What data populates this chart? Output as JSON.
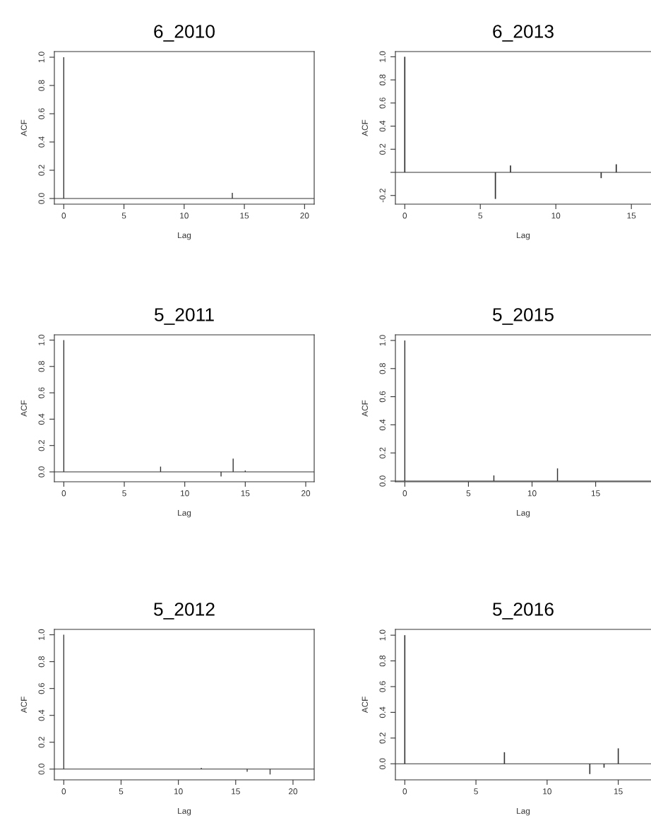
{
  "chart_data": [
    {
      "type": "bar",
      "title": "6_2010",
      "xlabel": "Lag",
      "ylabel": "ACF",
      "color": "#333333",
      "x": [
        0,
        14
      ],
      "values": [
        1.0,
        0.04
      ],
      "xlim": [
        -0.78,
        20.8
      ],
      "ylim": [
        -0.04,
        1.04
      ],
      "xticks": [
        0,
        5,
        10,
        15,
        20
      ],
      "yticks": [
        {
          "value": 0,
          "label": "0.0"
        },
        {
          "value": 0.2,
          "label": "0.2"
        },
        {
          "value": 0.4,
          "label": "0.4"
        },
        {
          "value": 0.6,
          "label": "0.6"
        },
        {
          "value": 0.8,
          "label": "0.8"
        },
        {
          "value": 1,
          "label": "1.0"
        }
      ],
      "ref_lines": [
        {
          "axis": "y",
          "value": 0
        }
      ]
    },
    {
      "type": "bar",
      "title": "6_2013",
      "xlabel": "Lag",
      "ylabel": "ACF",
      "color": "#333333",
      "x": [
        0,
        6,
        7,
        13,
        14
      ],
      "values": [
        1.0,
        -0.23,
        0.06,
        -0.05,
        0.07
      ],
      "xlim": [
        -0.62,
        16.3
      ],
      "ylim": [
        -0.275,
        1.045
      ],
      "xticks": [
        0,
        5,
        10,
        15
      ],
      "yticks": [
        {
          "value": -0.2,
          "label": "-0.2"
        },
        {
          "value": 0,
          "label": null
        },
        {
          "value": 0.2,
          "label": "0.2"
        },
        {
          "value": 0.4,
          "label": "0.4"
        },
        {
          "value": 0.6,
          "label": "0.6"
        },
        {
          "value": 0.8,
          "label": "0.8"
        },
        {
          "value": 1,
          "label": "1.0"
        }
      ],
      "ref_lines": [
        {
          "axis": "y",
          "value": 0
        }
      ]
    },
    {
      "type": "bar",
      "title": "5_2011",
      "xlabel": "Lag",
      "ylabel": "ACF",
      "color": "#333333",
      "x": [
        0,
        8,
        13,
        14,
        15
      ],
      "values": [
        1.0,
        0.04,
        -0.035,
        0.1,
        0.01
      ],
      "xlim": [
        -0.78,
        20.7
      ],
      "ylim": [
        -0.075,
        1.04
      ],
      "xticks": [
        0,
        5,
        10,
        15,
        20
      ],
      "yticks": [
        {
          "value": 0,
          "label": "0.0"
        },
        {
          "value": 0.2,
          "label": "0.2"
        },
        {
          "value": 0.4,
          "label": "0.4"
        },
        {
          "value": 0.6,
          "label": "0.6"
        },
        {
          "value": 0.8,
          "label": "0.8"
        },
        {
          "value": 1,
          "label": "1.0"
        }
      ],
      "ref_lines": [
        {
          "axis": "y",
          "value": 0
        }
      ]
    },
    {
      "type": "bar",
      "title": "5_2015",
      "xlabel": "Lag",
      "ylabel": "ACF",
      "color": "#333333",
      "x": [
        0,
        7,
        12
      ],
      "values": [
        1.0,
        0.04,
        0.09
      ],
      "xlim": [
        -0.74,
        19.35
      ],
      "ylim": [
        -0.005,
        1.04
      ],
      "xticks": [
        0,
        5,
        10,
        15
      ],
      "yticks": [
        {
          "value": 0,
          "label": "0.0"
        },
        {
          "value": 0.2,
          "label": "0.2"
        },
        {
          "value": 0.4,
          "label": "0.4"
        },
        {
          "value": 0.6,
          "label": "0.6"
        },
        {
          "value": 0.8,
          "label": "0.8"
        },
        {
          "value": 1,
          "label": "1.0"
        }
      ],
      "ref_lines": [
        {
          "axis": "y",
          "value": 0
        }
      ]
    },
    {
      "type": "bar",
      "title": "5_2012",
      "xlabel": "Lag",
      "ylabel": "ACF",
      "color": "#333333",
      "x": [
        0,
        12,
        16,
        18
      ],
      "values": [
        1.0,
        0.01,
        -0.02,
        -0.04
      ],
      "xlim": [
        -0.82,
        21.85
      ],
      "ylim": [
        -0.08,
        1.04
      ],
      "xticks": [
        0,
        5,
        10,
        15,
        20
      ],
      "yticks": [
        {
          "value": 0,
          "label": "0.0"
        },
        {
          "value": 0.2,
          "label": "0.2"
        },
        {
          "value": 0.4,
          "label": "0.4"
        },
        {
          "value": 0.6,
          "label": "0.6"
        },
        {
          "value": 0.8,
          "label": "0.8"
        },
        {
          "value": 1,
          "label": "1.0"
        }
      ],
      "ref_lines": [
        {
          "axis": "y",
          "value": 0
        }
      ]
    },
    {
      "type": "bar",
      "title": "5_2016",
      "xlabel": "Lag",
      "ylabel": "ACF",
      "color": "#333333",
      "x": [
        0,
        7,
        13,
        14,
        15
      ],
      "values": [
        1.0,
        0.09,
        -0.08,
        -0.03,
        0.12
      ],
      "xlim": [
        -0.66,
        17.3
      ],
      "ylim": [
        -0.125,
        1.045
      ],
      "xticks": [
        0,
        5,
        10,
        15
      ],
      "yticks": [
        {
          "value": 0,
          "label": "0.0"
        },
        {
          "value": 0.2,
          "label": "0.2"
        },
        {
          "value": 0.4,
          "label": "0.4"
        },
        {
          "value": 0.6,
          "label": "0.6"
        },
        {
          "value": 0.8,
          "label": "0.8"
        },
        {
          "value": 1,
          "label": "1.0"
        }
      ],
      "ref_lines": [
        {
          "axis": "y",
          "value": 0
        }
      ]
    }
  ]
}
